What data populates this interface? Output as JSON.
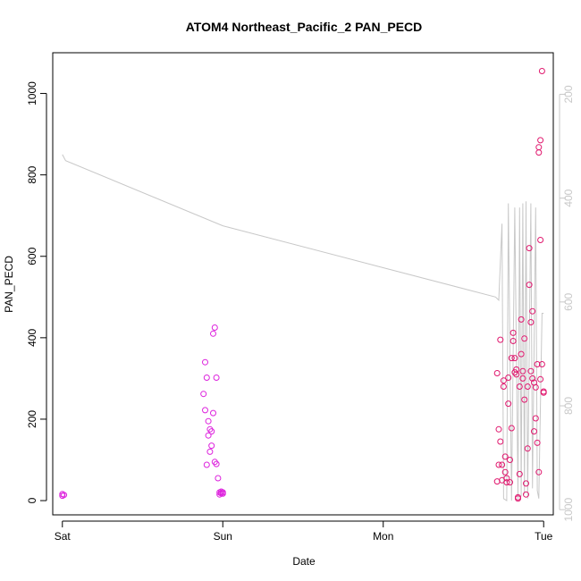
{
  "chart_data": {
    "type": "scatter",
    "title": "ATOM4 Northeast_Pacific_2 PAN_PECD",
    "xlabel": "Date",
    "ylabel": "PAN_PECD",
    "x_ticks": [
      "Sat",
      "Sun",
      "Mon",
      "Tue"
    ],
    "xlim": [
      -0.06,
      3.06
    ],
    "ylim": [
      -35,
      1100
    ],
    "y_ticks": [
      0,
      200,
      400,
      600,
      800,
      1000
    ],
    "y2_ticks": [
      200,
      400,
      600,
      800,
      1000
    ],
    "y2lim": [
      1010,
      120
    ],
    "grid": false,
    "colors": {
      "points_early": "#dd22dd",
      "points_late": "#e0186e",
      "secondary_line": "#c8c8c8",
      "axis": "#000000",
      "secondary_axis": "#c8c8c8"
    },
    "series": [
      {
        "values": [
          [
            0.0,
            16
          ],
          [
            0.0,
            12
          ],
          [
            0.01,
            14
          ],
          [
            0.88,
            262
          ],
          [
            0.89,
            222
          ],
          [
            0.89,
            340
          ],
          [
            0.9,
            302
          ],
          [
            0.9,
            88
          ],
          [
            0.91,
            195
          ],
          [
            0.91,
            160
          ],
          [
            0.92,
            120
          ],
          [
            0.92,
            175
          ],
          [
            0.93,
            170
          ],
          [
            0.93,
            135
          ],
          [
            0.94,
            215
          ],
          [
            0.94,
            410
          ],
          [
            0.95,
            425
          ],
          [
            0.95,
            95
          ],
          [
            0.96,
            302
          ],
          [
            0.96,
            90
          ],
          [
            0.97,
            55
          ],
          [
            0.98,
            20
          ],
          [
            0.98,
            15
          ],
          [
            0.99,
            18
          ],
          [
            0.99,
            22
          ],
          [
            1.0,
            20
          ],
          [
            1.0,
            17
          ]
        ]
      },
      {
        "values": [
          [
            2.71,
            313
          ],
          [
            2.71,
            47
          ],
          [
            2.72,
            88
          ],
          [
            2.72,
            175
          ],
          [
            2.73,
            145
          ],
          [
            2.73,
            395
          ],
          [
            2.74,
            50
          ],
          [
            2.74,
            88
          ],
          [
            2.75,
            295
          ],
          [
            2.75,
            280
          ],
          [
            2.76,
            108
          ],
          [
            2.76,
            70
          ],
          [
            2.77,
            55
          ],
          [
            2.77,
            45
          ],
          [
            2.78,
            238
          ],
          [
            2.78,
            302
          ],
          [
            2.79,
            100
          ],
          [
            2.79,
            45
          ],
          [
            2.8,
            350
          ],
          [
            2.8,
            178
          ],
          [
            2.81,
            392
          ],
          [
            2.81,
            412
          ],
          [
            2.82,
            350
          ],
          [
            2.82,
            315
          ],
          [
            2.83,
            322
          ],
          [
            2.83,
            310
          ],
          [
            2.84,
            5
          ],
          [
            2.84,
            8
          ],
          [
            2.85,
            65
          ],
          [
            2.85,
            280
          ],
          [
            2.86,
            360
          ],
          [
            2.86,
            445
          ],
          [
            2.87,
            318
          ],
          [
            2.87,
            300
          ],
          [
            2.88,
            398
          ],
          [
            2.88,
            248
          ],
          [
            2.89,
            42
          ],
          [
            2.89,
            15
          ],
          [
            2.9,
            128
          ],
          [
            2.9,
            280
          ],
          [
            2.91,
            620
          ],
          [
            2.91,
            530
          ],
          [
            2.92,
            438
          ],
          [
            2.92,
            318
          ],
          [
            2.93,
            465
          ],
          [
            2.93,
            300
          ],
          [
            2.94,
            290
          ],
          [
            2.94,
            170
          ],
          [
            2.95,
            202
          ],
          [
            2.95,
            278
          ],
          [
            2.96,
            335
          ],
          [
            2.96,
            142
          ],
          [
            2.97,
            70
          ],
          [
            2.97,
            855
          ],
          [
            2.97,
            868
          ],
          [
            2.98,
            885
          ],
          [
            2.98,
            640
          ],
          [
            2.98,
            298
          ],
          [
            2.99,
            335
          ],
          [
            2.99,
            1055
          ],
          [
            3.0,
            265
          ],
          [
            3.0,
            268
          ]
        ]
      }
    ],
    "secondary_line": [
      [
        0.0,
        850
      ],
      [
        0.02,
        835
      ],
      [
        1.0,
        675
      ],
      [
        1.97,
        575
      ],
      [
        2.7,
        500
      ],
      [
        2.72,
        492
      ],
      [
        2.74,
        680
      ],
      [
        2.75,
        5
      ],
      [
        2.77,
        0
      ],
      [
        2.78,
        730
      ],
      [
        2.8,
        0
      ],
      [
        2.82,
        720
      ],
      [
        2.84,
        5
      ],
      [
        2.85,
        720
      ],
      [
        2.86,
        10
      ],
      [
        2.87,
        730
      ],
      [
        2.88,
        15
      ],
      [
        2.89,
        735
      ],
      [
        2.9,
        5
      ],
      [
        2.92,
        730
      ],
      [
        2.93,
        30
      ],
      [
        2.95,
        720
      ],
      [
        2.96,
        25
      ],
      [
        2.97,
        5
      ],
      [
        2.99,
        460
      ],
      [
        3.0,
        460
      ]
    ]
  }
}
